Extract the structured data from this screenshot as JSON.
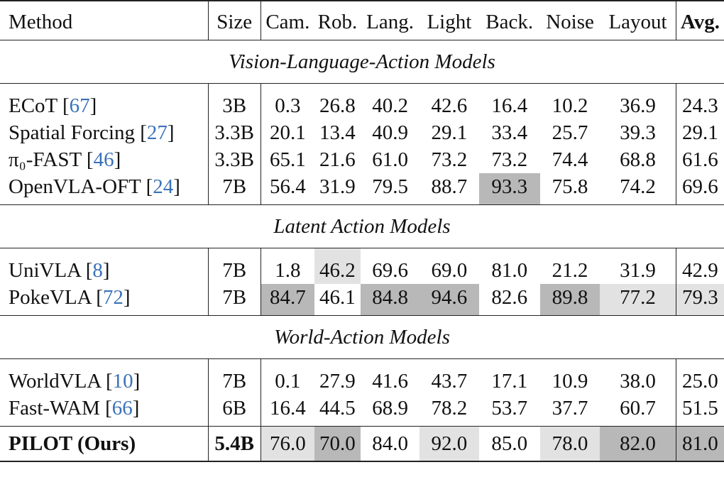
{
  "columns": {
    "method": "Method",
    "size": "Size",
    "cam": "Cam.",
    "rob": "Rob.",
    "lang": "Lang.",
    "light": "Light",
    "back": "Back.",
    "noise": "Noise",
    "layout": "Layout",
    "avg": "Avg."
  },
  "sections": [
    {
      "title": "Vision-Language-Action Models",
      "rows": [
        {
          "name": "ECoT [",
          "cite": "67",
          "close": "]",
          "size": "3B",
          "values": [
            "0.3",
            "26.8",
            "40.2",
            "42.6",
            "16.4",
            "10.2",
            "36.9"
          ],
          "avg": "24.3"
        },
        {
          "name": "Spatial Forcing [",
          "cite": "27",
          "close": "]",
          "size": "3.3B",
          "values": [
            "20.1",
            "13.4",
            "40.9",
            "29.1",
            "33.4",
            "25.7",
            "39.3"
          ],
          "avg": "29.1"
        },
        {
          "name": "π₀-FAST [",
          "cite": "46",
          "close": "]",
          "size": "3.3B",
          "values": [
            "65.1",
            "21.6",
            "61.0",
            "73.2",
            "73.2",
            "74.4",
            "68.8"
          ],
          "avg": "61.6"
        },
        {
          "name": "OpenVLA-OFT [",
          "cite": "24",
          "close": "]",
          "size": "7B",
          "values": [
            "56.4",
            "31.9",
            "79.5",
            "88.7",
            "93.3",
            "75.8",
            "74.2"
          ],
          "avg": "69.6"
        }
      ]
    },
    {
      "title": "Latent Action Models",
      "rows": [
        {
          "name": "UniVLA [",
          "cite": "8",
          "close": "]",
          "size": "7B",
          "values": [
            "1.8",
            "46.2",
            "69.6",
            "69.0",
            "81.0",
            "21.2",
            "31.9"
          ],
          "avg": "42.9"
        },
        {
          "name": "PokeVLA [",
          "cite": "72",
          "close": "]",
          "size": "7B",
          "values": [
            "84.7",
            "46.1",
            "84.8",
            "94.6",
            "82.6",
            "89.8",
            "77.2"
          ],
          "avg": "79.3"
        }
      ]
    },
    {
      "title": "World-Action Models",
      "rows": [
        {
          "name": "WorldVLA [",
          "cite": "10",
          "close": "]",
          "size": "7B",
          "values": [
            "0.1",
            "27.9",
            "41.6",
            "43.7",
            "17.1",
            "10.9",
            "38.0"
          ],
          "avg": "25.0"
        },
        {
          "name": "Fast-WAM [",
          "cite": "66",
          "close": "]",
          "size": "6B",
          "values": [
            "16.4",
            "44.5",
            "68.9",
            "78.2",
            "53.7",
            "37.7",
            "60.7"
          ],
          "avg": "51.5"
        }
      ]
    }
  ],
  "ours": {
    "name": "PILOT (Ours)",
    "size": "5.4B",
    "values": [
      "76.0",
      "70.0",
      "84.0",
      "92.0",
      "85.0",
      "78.0",
      "82.0"
    ],
    "avg": "81.0"
  }
}
